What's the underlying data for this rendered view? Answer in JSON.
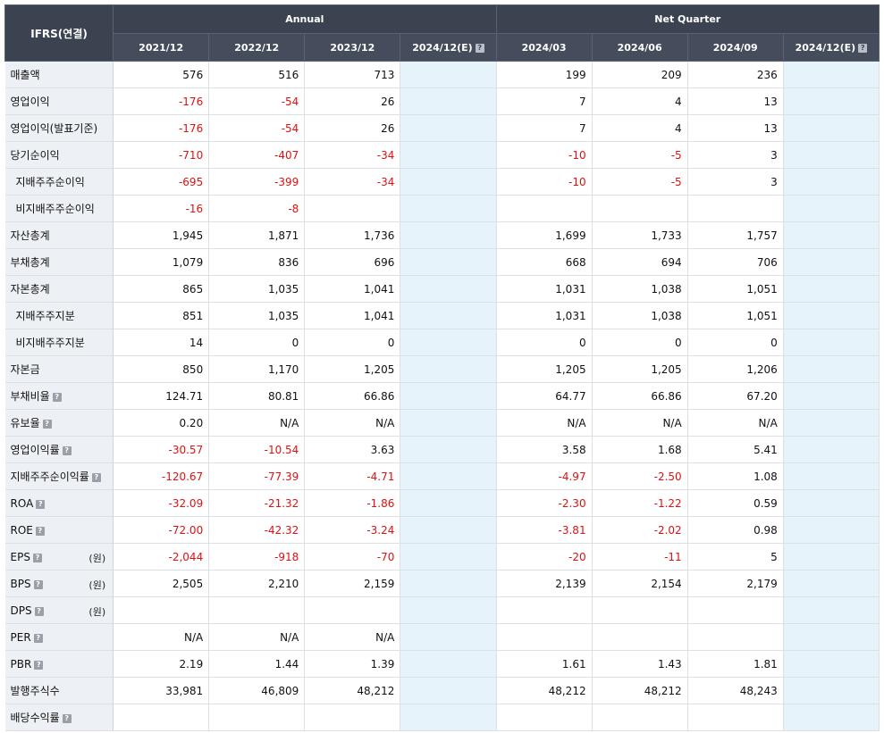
{
  "header": {
    "corner": "IFRS(연결)",
    "group_annual": "Annual",
    "group_quarter": "Net Quarter",
    "columns": [
      "2021/12",
      "2022/12",
      "2023/12",
      "2024/12(E)",
      "2024/03",
      "2024/06",
      "2024/09",
      "2024/12(E)"
    ],
    "estimate_columns": [
      3,
      7
    ],
    "help_columns": [
      3,
      7
    ]
  },
  "icons": {
    "help": "question-help-icon",
    "help_glyph": "?"
  },
  "colors": {
    "negative": "#dd1111",
    "header_bg": "#3b4250",
    "label_bg": "#edf0f4",
    "estimate_bg": "#e6f3fa"
  },
  "rows": [
    {
      "label": "매출액",
      "indent": false,
      "help": false,
      "unit": "",
      "values": [
        "576",
        "516",
        "713",
        "",
        "199",
        "209",
        "236",
        ""
      ]
    },
    {
      "label": "영업이익",
      "indent": false,
      "help": false,
      "unit": "",
      "values": [
        "-176",
        "-54",
        "26",
        "",
        "7",
        "4",
        "13",
        ""
      ]
    },
    {
      "label": "영업이익(발표기준)",
      "indent": false,
      "help": false,
      "unit": "",
      "values": [
        "-176",
        "-54",
        "26",
        "",
        "7",
        "4",
        "13",
        ""
      ]
    },
    {
      "label": "당기순이익",
      "indent": false,
      "help": false,
      "unit": "",
      "values": [
        "-710",
        "-407",
        "-34",
        "",
        "-10",
        "-5",
        "3",
        ""
      ]
    },
    {
      "label": "지배주주순이익",
      "indent": true,
      "help": false,
      "unit": "",
      "values": [
        "-695",
        "-399",
        "-34",
        "",
        "-10",
        "-5",
        "3",
        ""
      ]
    },
    {
      "label": "비지배주주순이익",
      "indent": true,
      "help": false,
      "unit": "",
      "values": [
        "-16",
        "-8",
        "",
        "",
        "",
        "",
        "",
        ""
      ]
    },
    {
      "label": "자산총계",
      "indent": false,
      "help": false,
      "unit": "",
      "values": [
        "1,945",
        "1,871",
        "1,736",
        "",
        "1,699",
        "1,733",
        "1,757",
        ""
      ]
    },
    {
      "label": "부채총계",
      "indent": false,
      "help": false,
      "unit": "",
      "values": [
        "1,079",
        "836",
        "696",
        "",
        "668",
        "694",
        "706",
        ""
      ]
    },
    {
      "label": "자본총계",
      "indent": false,
      "help": false,
      "unit": "",
      "values": [
        "865",
        "1,035",
        "1,041",
        "",
        "1,031",
        "1,038",
        "1,051",
        ""
      ]
    },
    {
      "label": "지배주주지분",
      "indent": true,
      "help": false,
      "unit": "",
      "values": [
        "851",
        "1,035",
        "1,041",
        "",
        "1,031",
        "1,038",
        "1,051",
        ""
      ]
    },
    {
      "label": "비지배주주지분",
      "indent": true,
      "help": false,
      "unit": "",
      "values": [
        "14",
        "0",
        "0",
        "",
        "0",
        "0",
        "0",
        ""
      ]
    },
    {
      "label": "자본금",
      "indent": false,
      "help": false,
      "unit": "",
      "values": [
        "850",
        "1,170",
        "1,205",
        "",
        "1,205",
        "1,205",
        "1,206",
        ""
      ]
    },
    {
      "label": "부채비율",
      "indent": false,
      "help": true,
      "unit": "",
      "values": [
        "124.71",
        "80.81",
        "66.86",
        "",
        "64.77",
        "66.86",
        "67.20",
        ""
      ]
    },
    {
      "label": "유보율",
      "indent": false,
      "help": true,
      "unit": "",
      "values": [
        "0.20",
        "N/A",
        "N/A",
        "",
        "N/A",
        "N/A",
        "N/A",
        ""
      ]
    },
    {
      "label": "영업이익률",
      "indent": false,
      "help": true,
      "unit": "",
      "values": [
        "-30.57",
        "-10.54",
        "3.63",
        "",
        "3.58",
        "1.68",
        "5.41",
        ""
      ]
    },
    {
      "label": "지배주주순이익률",
      "indent": false,
      "help": true,
      "unit": "",
      "values": [
        "-120.67",
        "-77.39",
        "-4.71",
        "",
        "-4.97",
        "-2.50",
        "1.08",
        ""
      ]
    },
    {
      "label": "ROA",
      "indent": false,
      "help": true,
      "unit": "",
      "values": [
        "-32.09",
        "-21.32",
        "-1.86",
        "",
        "-2.30",
        "-1.22",
        "0.59",
        ""
      ]
    },
    {
      "label": "ROE",
      "indent": false,
      "help": true,
      "unit": "",
      "values": [
        "-72.00",
        "-42.32",
        "-3.24",
        "",
        "-3.81",
        "-2.02",
        "0.98",
        ""
      ]
    },
    {
      "label": "EPS",
      "indent": false,
      "help": true,
      "unit": "(원)",
      "values": [
        "-2,044",
        "-918",
        "-70",
        "",
        "-20",
        "-11",
        "5",
        ""
      ]
    },
    {
      "label": "BPS",
      "indent": false,
      "help": true,
      "unit": "(원)",
      "values": [
        "2,505",
        "2,210",
        "2,159",
        "",
        "2,139",
        "2,154",
        "2,179",
        ""
      ]
    },
    {
      "label": "DPS",
      "indent": false,
      "help": true,
      "unit": "(원)",
      "values": [
        "",
        "",
        "",
        "",
        "",
        "",
        "",
        ""
      ]
    },
    {
      "label": "PER",
      "indent": false,
      "help": true,
      "unit": "",
      "values": [
        "N/A",
        "N/A",
        "N/A",
        "",
        "",
        "",
        "",
        ""
      ]
    },
    {
      "label": "PBR",
      "indent": false,
      "help": true,
      "unit": "",
      "values": [
        "2.19",
        "1.44",
        "1.39",
        "",
        "1.61",
        "1.43",
        "1.81",
        ""
      ]
    },
    {
      "label": "발행주식수",
      "indent": false,
      "help": false,
      "unit": "",
      "values": [
        "33,981",
        "46,809",
        "48,212",
        "",
        "48,212",
        "48,212",
        "48,243",
        ""
      ]
    },
    {
      "label": "배당수익률",
      "indent": false,
      "help": true,
      "unit": "",
      "values": [
        "",
        "",
        "",
        "",
        "",
        "",
        "",
        ""
      ]
    }
  ]
}
